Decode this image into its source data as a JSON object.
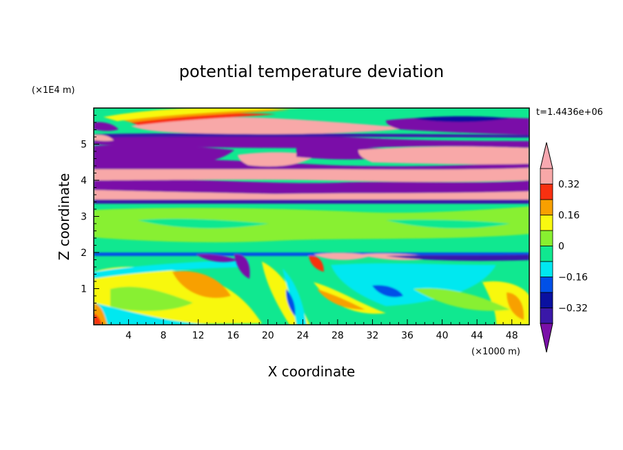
{
  "chart_data": {
    "type": "heatmap",
    "title": "potential temperature deviation",
    "xlabel": "X coordinate",
    "ylabel": "Z coordinate",
    "x_unit": "(×1000 m)",
    "y_unit": "(×1E4 m)",
    "time_label": "t=1.4436e+06",
    "xlim": [
      0,
      50
    ],
    "ylim": [
      0,
      6
    ],
    "x_ticks": [
      4,
      8,
      12,
      16,
      20,
      24,
      28,
      32,
      36,
      40,
      44,
      48
    ],
    "y_ticks": [
      1,
      2,
      3,
      4,
      5
    ],
    "colorbar": {
      "levels": [
        -0.4,
        -0.32,
        -0.24,
        -0.16,
        -0.08,
        0,
        0.08,
        0.16,
        0.24,
        0.32,
        0.4
      ],
      "labels": [
        "0.32",
        "0.16",
        "0",
        "−0.16",
        "−0.32"
      ],
      "label_values": [
        0.32,
        0.16,
        0,
        -0.16,
        -0.32
      ],
      "colors": [
        "#7a10a8",
        "#3a18a8",
        "#0a10a0",
        "#0050e8",
        "#00e8f0",
        "#10e890",
        "#88f030",
        "#f8f810",
        "#f8a000",
        "#f83010",
        "#f8a8a8",
        "#f8a8b0"
      ],
      "extend": "both"
    },
    "layers": [
      {
        "z_range": [
          5.7,
          6.0
        ],
        "pattern": "green band with yellow/orange streaks",
        "mean_value": 0.05
      },
      {
        "z_range": [
          5.4,
          5.7
        ],
        "pattern": "pink warm anomaly, purple to the east",
        "mean_value": 0.35
      },
      {
        "z_range": [
          5.0,
          5.4
        ],
        "pattern": "purple cold band",
        "mean_value": -0.4
      },
      {
        "z_range": [
          4.4,
          5.0
        ],
        "pattern": "purple west, pink east",
        "mean_value": 0.0
      },
      {
        "z_range": [
          3.4,
          4.4
        ],
        "pattern": "alternating pink and purple stripes",
        "mean_value": 0.0
      },
      {
        "z_range": [
          2.0,
          3.4
        ],
        "pattern": "near-zero green/light green",
        "mean_value": 0.02
      },
      {
        "z_range": [
          1.7,
          2.0
        ],
        "pattern": "thin purple/pink interface layer",
        "mean_value": -0.1
      },
      {
        "z_range": [
          0.0,
          1.7
        ],
        "pattern": "green with yellow/orange and cyan/blue eddies",
        "mean_value": 0.03
      }
    ]
  }
}
